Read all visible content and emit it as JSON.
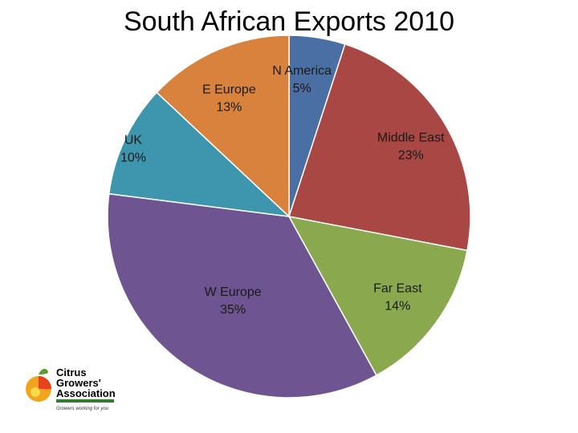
{
  "chart_data": {
    "type": "pie",
    "title": "South African Exports 2010",
    "slices": [
      {
        "label": "N America",
        "value": 5,
        "display": "5%",
        "color": "#4a6fa5"
      },
      {
        "label": "Middle East",
        "value": 23,
        "display": "23%",
        "color": "#a84744"
      },
      {
        "label": "Far East",
        "value": 14,
        "display": "14%",
        "color": "#8aa84e"
      },
      {
        "label": "W Europe",
        "value": 35,
        "display": "35%",
        "color": "#6e5490"
      },
      {
        "label": "UK",
        "value": 10,
        "display": "10%",
        "color": "#3d96ae"
      },
      {
        "label": "E Europe",
        "value": 13,
        "display": "13%",
        "color": "#d8823d"
      }
    ],
    "legend": "none"
  },
  "logo": {
    "line1": "Citrus",
    "line2": "Growers'",
    "line3": "Association",
    "tagline": "Growers working for you",
    "icon": "orange-fruit-icon"
  }
}
